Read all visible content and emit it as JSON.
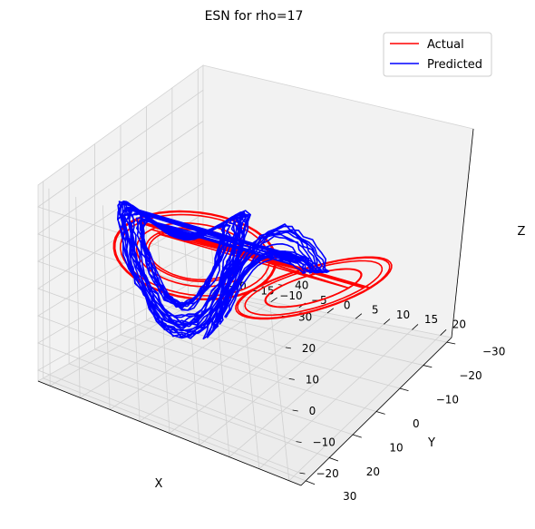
{
  "chart_data": {
    "type": "line3d",
    "title": "ESN for rho=17",
    "xlabel": "X",
    "ylabel": "Y",
    "zlabel": "Z",
    "xticks": [
      -20,
      -15,
      -10,
      -5,
      0,
      5,
      10,
      15,
      20
    ],
    "yticks": [
      -30,
      -20,
      -10,
      0,
      10,
      20,
      30
    ],
    "zticks": [
      -20,
      -10,
      0,
      10,
      20,
      30,
      40
    ],
    "xlim": [
      -22,
      22
    ],
    "ylim": [
      -32,
      32
    ],
    "zlim": [
      -24,
      48
    ],
    "grid": true,
    "legend_position": "top-right",
    "series": [
      {
        "name": "Actual",
        "color": "#ff0000",
        "shape": "two-lobe spiral",
        "x_range": [
          -21,
          22
        ],
        "y_range": [
          -25,
          25
        ],
        "z_range": [
          -20,
          42
        ],
        "loops": 11
      },
      {
        "name": "Predicted",
        "color": "#0000ff",
        "shape": "dense loops concentrated at negative x, extending to about x=10",
        "x_range": [
          -19,
          11
        ],
        "y_range": [
          -20,
          22
        ],
        "z_range": [
          -22,
          46
        ],
        "loops": 34
      }
    ]
  }
}
